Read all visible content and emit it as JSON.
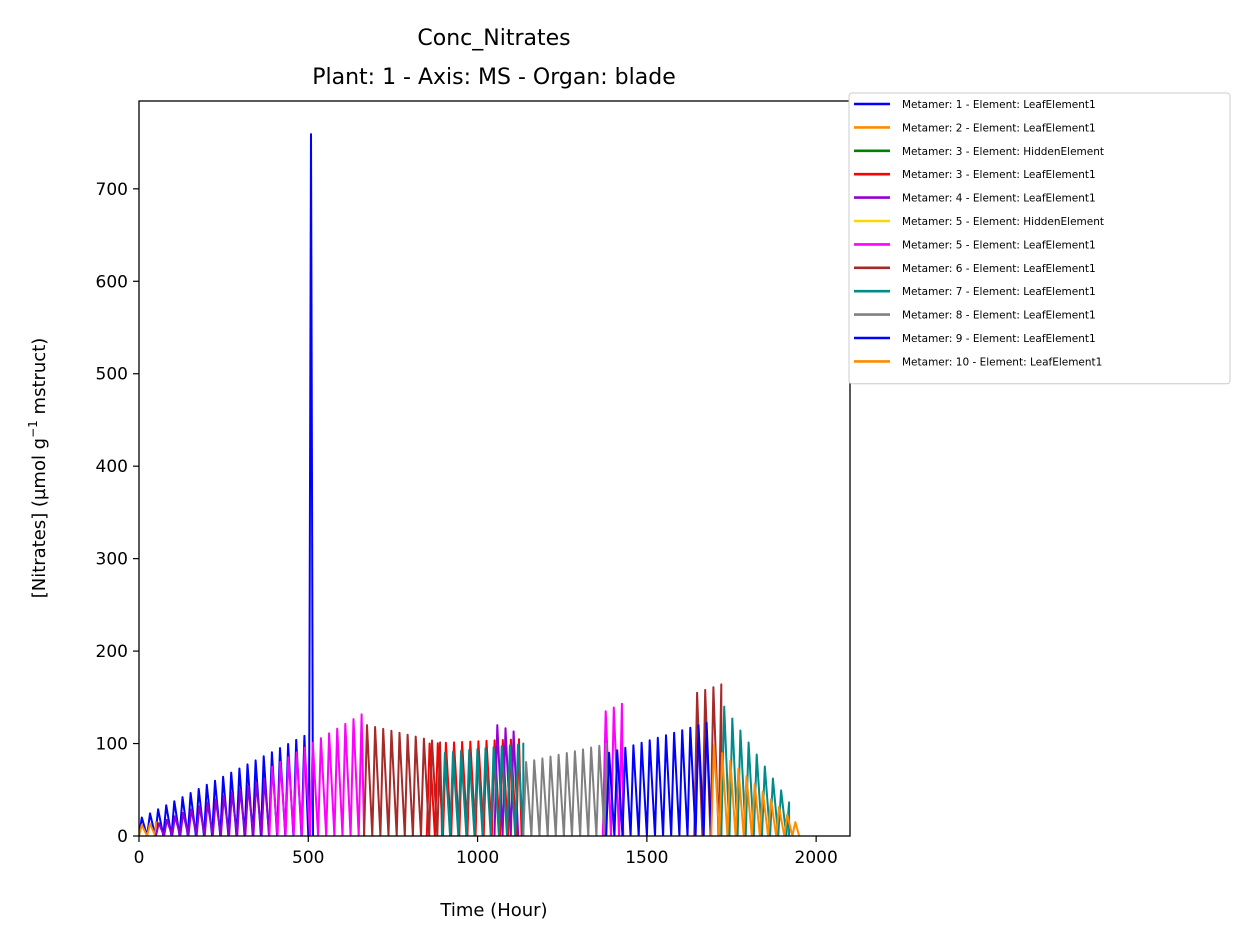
{
  "chart_data": {
    "type": "line",
    "title": "Conc_Nitrates",
    "subtitle": "Plant: 1 - Axis: MS - Organ: blade",
    "xlabel": "Time (Hour)",
    "ylabel_main": "[Nitrates] (µmol g",
    "ylabel_sup": "−1",
    "ylabel_tail": " mstruct)",
    "xlim": [
      0,
      2100
    ],
    "ylim": [
      0,
      795
    ],
    "x_ticks": [
      0,
      500,
      1000,
      1500,
      2000
    ],
    "y_ticks": [
      0,
      100,
      200,
      300,
      400,
      500,
      600,
      700
    ],
    "grid": false,
    "legend_placement": "outside-right-top",
    "diurnal_period_hours": 24,
    "series": [
      {
        "name": "Metamer: 1 - Element: LeafElement1",
        "color": "#0000ff",
        "segments": [
          {
            "x": [
              0,
              500
            ],
            "peak_y": [
              20,
              112
            ]
          }
        ],
        "spike": {
          "x": 508,
          "y": 760
        }
      },
      {
        "name": "Metamer: 2 - Element: LeafElement1",
        "color": "#ff8c00",
        "segments": [
          {
            "x": [
              0,
              50
            ],
            "peak_y": [
              12,
              15
            ]
          }
        ]
      },
      {
        "name": "Metamer: 3 - Element: HiddenElement",
        "color": "#008000",
        "segments": []
      },
      {
        "name": "Metamer: 3 - Element: LeafElement1",
        "color": "#ff0000",
        "segments": [
          {
            "x": [
              850,
              1130
            ],
            "peak_y": [
              100,
              105
            ]
          }
        ]
      },
      {
        "name": "Metamer: 4 - Element: LeafElement1",
        "color": "#9400d3",
        "segments": [
          {
            "x": [
              50,
              385
            ],
            "peak_y": [
              14,
              65
            ]
          },
          {
            "x": [
              1050,
              1120
            ],
            "peak_y": [
              120,
              110
            ]
          }
        ]
      },
      {
        "name": "Metamer: 5 - Element: HiddenElement",
        "color": "#ffd700",
        "segments": []
      },
      {
        "name": "Metamer: 5 - Element: LeafElement1",
        "color": "#ff00ff",
        "segments": [
          {
            "x": [
              385,
              665
            ],
            "peak_y": [
              75,
              135
            ]
          },
          {
            "x": [
              1370,
              1430
            ],
            "peak_y": [
              135,
              145
            ]
          }
        ]
      },
      {
        "name": "Metamer: 6 - Element: LeafElement1",
        "color": "#a52a2a",
        "segments": [
          {
            "x": [
              665,
              895
            ],
            "peak_y": [
              120,
              100
            ]
          },
          {
            "x": [
              1640,
              1720
            ],
            "peak_y": [
              155,
              165
            ]
          }
        ]
      },
      {
        "name": "Metamer: 7 - Element: LeafElement1",
        "color": "#008b8b",
        "segments": [
          {
            "x": [
              895,
              1135
            ],
            "peak_y": [
              90,
              100
            ]
          },
          {
            "x": [
              1720,
              1920
            ],
            "peak_y": [
              140,
              32
            ]
          }
        ]
      },
      {
        "name": "Metamer: 8 - Element: LeafElement1",
        "color": "#808080",
        "segments": [
          {
            "x": [
              1135,
              1380
            ],
            "peak_y": [
              80,
              100
            ]
          }
        ]
      },
      {
        "name": "Metamer: 9 - Element: LeafElement1",
        "color": "#0000ff",
        "segments": [
          {
            "x": [
              1380,
              1690
            ],
            "peak_y": [
              90,
              125
            ]
          }
        ]
      },
      {
        "name": "Metamer: 10 - Element: LeafElement1",
        "color": "#ff8c00",
        "segments": [
          {
            "x": [
              1690,
              1950
            ],
            "peak_y": [
              98,
              8
            ]
          }
        ]
      }
    ]
  }
}
